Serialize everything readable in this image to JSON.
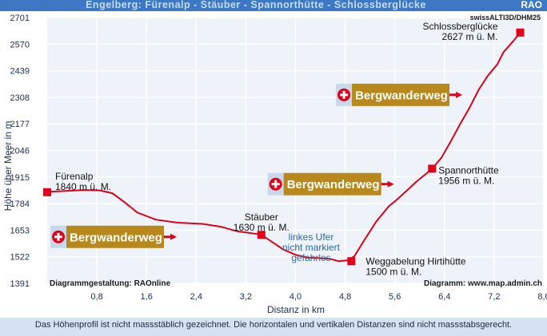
{
  "header": {
    "title": "Engelberg: Fürenalp - Stäuber - Spannorthütte - Schlossberglücke",
    "brand": "RAO"
  },
  "chart_data": {
    "type": "line",
    "xlabel": "Distanz in km",
    "ylabel": "Höhe über Meer in m",
    "xlim": [
      0,
      8.0
    ],
    "ylim": [
      1391,
      2701
    ],
    "xticks": [
      "0,8",
      "1,6",
      "2,4",
      "3,2",
      "4,0",
      "4,8",
      "5,6",
      "6,4",
      "7,2",
      "8,0"
    ],
    "yticks": [
      "2701",
      "2570",
      "2439",
      "2308",
      "2177",
      "2046",
      "1915",
      "1784",
      "1653",
      "1522",
      "1391"
    ],
    "grid": true,
    "source_top": "swissALTI3D/DHM25",
    "credit_left": "Diagrammgestaltung: RAOnline",
    "credit_right": "Diagramm: www.map.admin.ch",
    "line_color": "#e0001a",
    "profile": [
      [
        0.0,
        1842
      ],
      [
        0.3,
        1846
      ],
      [
        0.6,
        1851
      ],
      [
        0.85,
        1849
      ],
      [
        1.05,
        1835
      ],
      [
        1.25,
        1790
      ],
      [
        1.45,
        1740
      ],
      [
        1.75,
        1705
      ],
      [
        2.1,
        1690
      ],
      [
        2.5,
        1684
      ],
      [
        2.8,
        1670
      ],
      [
        3.05,
        1648
      ],
      [
        3.25,
        1640
      ],
      [
        3.45,
        1630
      ],
      [
        3.6,
        1600
      ],
      [
        3.8,
        1558
      ],
      [
        4.0,
        1532
      ],
      [
        4.2,
        1517
      ],
      [
        4.35,
        1516
      ],
      [
        4.55,
        1512
      ],
      [
        4.7,
        1500
      ],
      [
        4.85,
        1505
      ],
      [
        4.95,
        1525
      ],
      [
        5.1,
        1600
      ],
      [
        5.3,
        1695
      ],
      [
        5.5,
        1770
      ],
      [
        5.65,
        1808
      ],
      [
        5.8,
        1850
      ],
      [
        5.95,
        1893
      ],
      [
        6.1,
        1930
      ],
      [
        6.2,
        1956
      ],
      [
        6.35,
        2010
      ],
      [
        6.5,
        2090
      ],
      [
        6.65,
        2175
      ],
      [
        6.8,
        2255
      ],
      [
        6.95,
        2345
      ],
      [
        7.1,
        2415
      ],
      [
        7.25,
        2470
      ],
      [
        7.35,
        2530
      ],
      [
        7.5,
        2582
      ],
      [
        7.62,
        2627
      ]
    ],
    "points": [
      {
        "label": "Fürenalp",
        "label2": "1840 m ü. M.",
        "x": 0.0,
        "y": 1840
      },
      {
        "label": "Stäuber",
        "label2": "1630 m ü. M.",
        "x": 3.45,
        "y": 1630
      },
      {
        "label": "Weggabelung Hirtihütte",
        "label2": "1500 m ü. M.",
        "x": 4.9,
        "y": 1500
      },
      {
        "label": "Spannorthütte",
        "label2": "1956 m ü. M.",
        "x": 6.2,
        "y": 1956
      },
      {
        "label": "Schlossberglücke",
        "label2": "2627 m ü. M.",
        "x": 7.62,
        "y": 2627
      }
    ],
    "note_lines": [
      "linkes Ufer",
      "nicht markiert",
      "gefahrlos"
    ],
    "signs": [
      {
        "text": "Bergwanderweg",
        "x": 0.0,
        "y": 1620
      },
      {
        "text": "Bergwanderweg",
        "x": 3.5,
        "y": 1880
      },
      {
        "text": "Bergwanderweg",
        "x": 4.6,
        "y": 2320
      }
    ]
  },
  "footer": {
    "note": "Das Höhenprofil ist nicht massstäblich gezeichnet. Die horizontalen und vertikalen Distanzen sind nicht massstabsgerecht."
  }
}
